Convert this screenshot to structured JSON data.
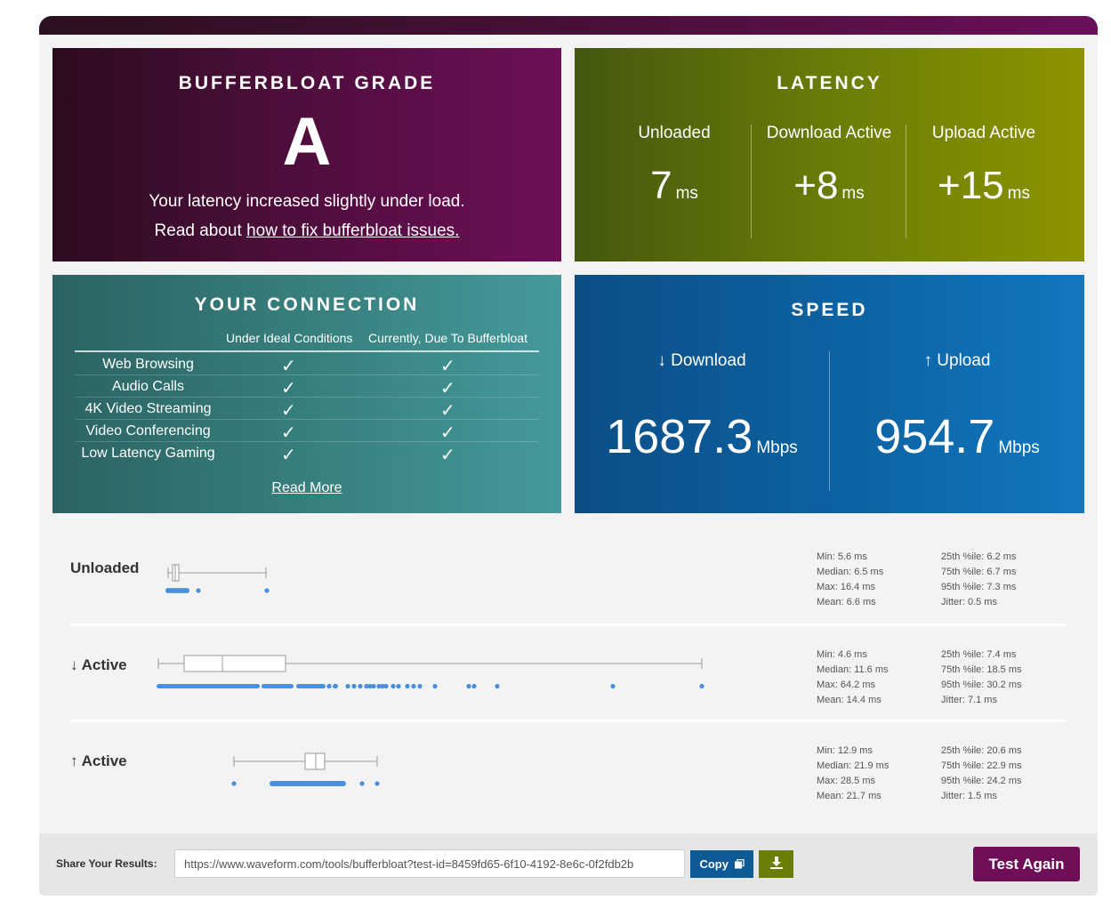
{
  "grade": {
    "title": "BUFFERBLOAT GRADE",
    "letter": "A",
    "line1": "Your latency increased slightly under load.",
    "line2_prefix": "Read about ",
    "line2_link": "how to fix bufferbloat issues."
  },
  "latency": {
    "title": "LATENCY",
    "cols": [
      {
        "label": "Unloaded",
        "value": "7",
        "unit": "ms"
      },
      {
        "label": "Download Active",
        "value": "+8",
        "unit": "ms"
      },
      {
        "label": "Upload Active",
        "value": "+15",
        "unit": "ms"
      }
    ]
  },
  "connection": {
    "title": "YOUR CONNECTION",
    "col1": "Under Ideal Conditions",
    "col2": "Currently, Due To Bufferbloat",
    "check": "✓",
    "rows": [
      {
        "label": "Web Browsing"
      },
      {
        "label": "Audio Calls"
      },
      {
        "label": "4K Video Streaming"
      },
      {
        "label": "Video Conferencing"
      },
      {
        "label": "Low Latency Gaming"
      }
    ],
    "read_more": "Read More"
  },
  "speed": {
    "title": "SPEED",
    "download": {
      "label": "↓ Download",
      "value": "1687.3",
      "unit": "Mbps"
    },
    "upload": {
      "label": "↑ Upload",
      "value": "954.7",
      "unit": "Mbps"
    }
  },
  "sections": [
    {
      "name": "Unloaded",
      "stats_left": [
        "Min: 5.6 ms",
        "Median: 6.5 ms",
        "Max: 16.4 ms",
        "Mean: 6.6 ms"
      ],
      "stats_right": [
        "25th %ile: 6.2 ms",
        "75th %ile: 6.7 ms",
        "95th %ile: 7.3 ms",
        "Jitter: 0.5 ms"
      ]
    },
    {
      "name": "↓ Active",
      "stats_left": [
        "Min: 4.6 ms",
        "Median: 11.6 ms",
        "Max: 64.2 ms",
        "Mean: 14.4 ms"
      ],
      "stats_right": [
        "25th %ile: 7.4 ms",
        "75th %ile: 18.5 ms",
        "95th %ile: 30.2 ms",
        "Jitter: 7.1 ms"
      ]
    },
    {
      "name": "↑ Active",
      "stats_left": [
        "Min: 12.9 ms",
        "Median: 21.9 ms",
        "Max: 28.5 ms",
        "Mean: 21.7 ms"
      ],
      "stats_right": [
        "25th %ile: 20.6 ms",
        "75th %ile: 22.9 ms",
        "95th %ile: 24.2 ms",
        "Jitter: 1.5 ms"
      ]
    }
  ],
  "footer": {
    "share_label": "Share Your Results:",
    "url": "https://www.waveform.com/tools/bufferbloat?test-id=8459fd65-6f10-4192-8e6c-0f2fdb2b",
    "copy_label": "Copy",
    "test_again": "Test Again"
  },
  "colors": {
    "grade_bg": "#4c0e3a",
    "latency_bg": "#6d7f06",
    "connection_bg": "#388280",
    "speed_bg": "#0d63a3",
    "dot_blue": "#4a8fdc"
  }
}
